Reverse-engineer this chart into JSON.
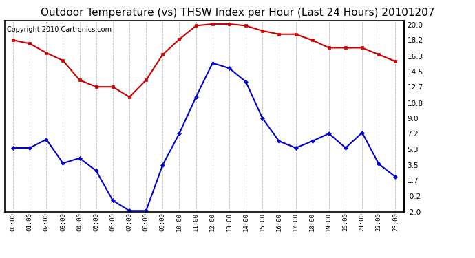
{
  "title": "Outdoor Temperature (vs) THSW Index per Hour (Last 24 Hours) 20101207",
  "copyright": "Copyright 2010 Cartronics.com",
  "x_labels": [
    "00:00",
    "01:00",
    "02:00",
    "03:00",
    "04:00",
    "05:00",
    "06:00",
    "07:00",
    "08:00",
    "09:00",
    "10:00",
    "11:00",
    "12:00",
    "13:00",
    "14:00",
    "15:00",
    "16:00",
    "17:00",
    "18:00",
    "19:00",
    "20:00",
    "21:00",
    "22:00",
    "23:00"
  ],
  "temp_red": [
    18.2,
    17.8,
    16.7,
    15.8,
    13.5,
    12.7,
    12.7,
    11.5,
    13.5,
    16.5,
    18.3,
    19.9,
    20.1,
    20.1,
    19.9,
    19.3,
    18.9,
    18.9,
    18.2,
    17.3,
    17.3,
    17.3,
    16.5,
    15.7
  ],
  "thsw_blue": [
    5.5,
    5.5,
    6.5,
    3.7,
    4.3,
    2.8,
    -0.7,
    -1.9,
    -1.9,
    3.5,
    7.2,
    11.5,
    15.5,
    14.9,
    13.3,
    9.0,
    6.3,
    5.5,
    6.3,
    7.2,
    5.5,
    7.3,
    3.6,
    2.1
  ],
  "y_ticks": [
    20.0,
    18.2,
    16.3,
    14.5,
    12.7,
    10.8,
    9.0,
    7.2,
    5.3,
    3.5,
    1.7,
    -0.2,
    -2.0
  ],
  "ylim": [
    -2.0,
    20.5
  ],
  "red_color": "#cc0000",
  "blue_color": "#0000cc",
  "bg_color": "#ffffff",
  "grid_color": "#bbbbbb",
  "title_fontsize": 11,
  "copyright_fontsize": 7
}
